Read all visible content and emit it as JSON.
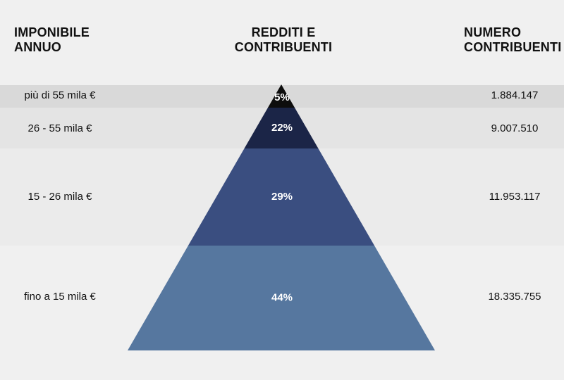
{
  "chart_data": {
    "type": "pyramid",
    "headers": {
      "left": [
        "IMPONIBILE",
        "ANNUO"
      ],
      "middle": [
        "REDDITI E",
        "CONTRIBUENTI"
      ],
      "right": [
        "NUMERO",
        "CONTRIBUENTI"
      ]
    },
    "levels": [
      {
        "label": "più di 55 mila €",
        "percent": "5%",
        "count": "1.884.147",
        "color": "#0d0d0d"
      },
      {
        "label": "26 - 55 mila €",
        "percent": "22%",
        "count": "9.007.510",
        "color": "#1b2547"
      },
      {
        "label": "15 - 26 mila €",
        "percent": "29%",
        "count": "11.953.117",
        "color": "#3a4e80"
      },
      {
        "label": "fino a 15 mila €",
        "percent": "44%",
        "count": "18.335.755",
        "color": "#56779f"
      }
    ],
    "band_colors": [
      "#d9d9d9",
      "#e4e4e4",
      "#ebebeb",
      "#f0f0f0"
    ]
  }
}
